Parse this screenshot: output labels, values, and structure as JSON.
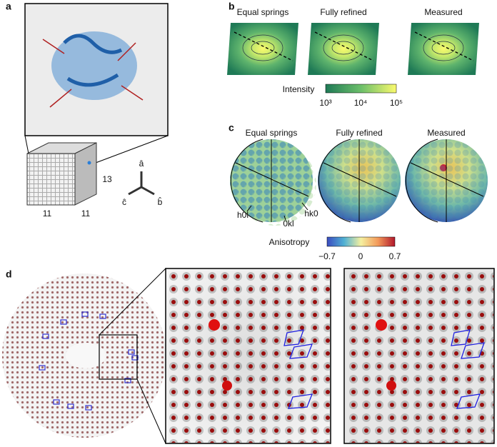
{
  "panels": {
    "a": {
      "label": "a",
      "lattice_dims": [
        "13",
        "11",
        "11"
      ],
      "axes": [
        "â",
        "ĉ",
        "b̂"
      ]
    },
    "b": {
      "label": "b",
      "titles": [
        "Equal springs",
        "Fully refined",
        "Measured"
      ],
      "colorbar": {
        "title": "Intensity",
        "ticks": [
          "10³",
          "10⁴",
          "10⁵"
        ]
      }
    },
    "c": {
      "label": "c",
      "titles": [
        "Equal springs",
        "Fully refined",
        "Measured"
      ],
      "axis_labels": [
        "h0l",
        "0kl",
        "hk0"
      ],
      "colorbar": {
        "title": "Anisotropy",
        "ticks": [
          "−0.7",
          "0",
          "0.7"
        ]
      }
    },
    "d": {
      "label": "d"
    }
  }
}
